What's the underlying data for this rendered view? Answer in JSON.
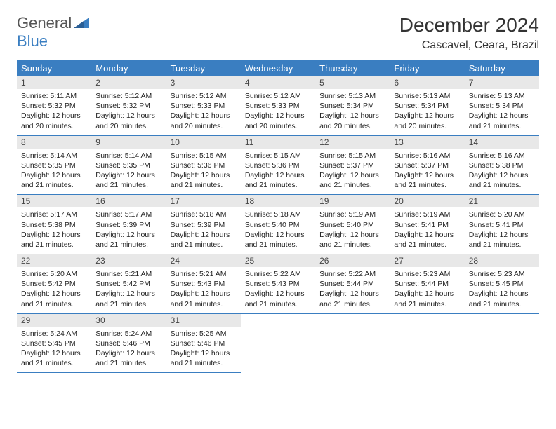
{
  "logo": {
    "text_gray": "General",
    "text_blue": "Blue"
  },
  "title": "December 2024",
  "location": "Cascavel, Ceara, Brazil",
  "colors": {
    "header_bg": "#3a7ec1",
    "header_fg": "#ffffff",
    "daynum_bg": "#e8e8e8",
    "row_border": "#3a7ec1",
    "page_bg": "#ffffff",
    "text": "#222222"
  },
  "day_headers": [
    "Sunday",
    "Monday",
    "Tuesday",
    "Wednesday",
    "Thursday",
    "Friday",
    "Saturday"
  ],
  "weeks": [
    [
      {
        "n": "1",
        "sunrise": "5:11 AM",
        "sunset": "5:32 PM",
        "daylight": "12 hours and 20 minutes."
      },
      {
        "n": "2",
        "sunrise": "5:12 AM",
        "sunset": "5:32 PM",
        "daylight": "12 hours and 20 minutes."
      },
      {
        "n": "3",
        "sunrise": "5:12 AM",
        "sunset": "5:33 PM",
        "daylight": "12 hours and 20 minutes."
      },
      {
        "n": "4",
        "sunrise": "5:12 AM",
        "sunset": "5:33 PM",
        "daylight": "12 hours and 20 minutes."
      },
      {
        "n": "5",
        "sunrise": "5:13 AM",
        "sunset": "5:34 PM",
        "daylight": "12 hours and 20 minutes."
      },
      {
        "n": "6",
        "sunrise": "5:13 AM",
        "sunset": "5:34 PM",
        "daylight": "12 hours and 20 minutes."
      },
      {
        "n": "7",
        "sunrise": "5:13 AM",
        "sunset": "5:34 PM",
        "daylight": "12 hours and 21 minutes."
      }
    ],
    [
      {
        "n": "8",
        "sunrise": "5:14 AM",
        "sunset": "5:35 PM",
        "daylight": "12 hours and 21 minutes."
      },
      {
        "n": "9",
        "sunrise": "5:14 AM",
        "sunset": "5:35 PM",
        "daylight": "12 hours and 21 minutes."
      },
      {
        "n": "10",
        "sunrise": "5:15 AM",
        "sunset": "5:36 PM",
        "daylight": "12 hours and 21 minutes."
      },
      {
        "n": "11",
        "sunrise": "5:15 AM",
        "sunset": "5:36 PM",
        "daylight": "12 hours and 21 minutes."
      },
      {
        "n": "12",
        "sunrise": "5:15 AM",
        "sunset": "5:37 PM",
        "daylight": "12 hours and 21 minutes."
      },
      {
        "n": "13",
        "sunrise": "5:16 AM",
        "sunset": "5:37 PM",
        "daylight": "12 hours and 21 minutes."
      },
      {
        "n": "14",
        "sunrise": "5:16 AM",
        "sunset": "5:38 PM",
        "daylight": "12 hours and 21 minutes."
      }
    ],
    [
      {
        "n": "15",
        "sunrise": "5:17 AM",
        "sunset": "5:38 PM",
        "daylight": "12 hours and 21 minutes."
      },
      {
        "n": "16",
        "sunrise": "5:17 AM",
        "sunset": "5:39 PM",
        "daylight": "12 hours and 21 minutes."
      },
      {
        "n": "17",
        "sunrise": "5:18 AM",
        "sunset": "5:39 PM",
        "daylight": "12 hours and 21 minutes."
      },
      {
        "n": "18",
        "sunrise": "5:18 AM",
        "sunset": "5:40 PM",
        "daylight": "12 hours and 21 minutes."
      },
      {
        "n": "19",
        "sunrise": "5:19 AM",
        "sunset": "5:40 PM",
        "daylight": "12 hours and 21 minutes."
      },
      {
        "n": "20",
        "sunrise": "5:19 AM",
        "sunset": "5:41 PM",
        "daylight": "12 hours and 21 minutes."
      },
      {
        "n": "21",
        "sunrise": "5:20 AM",
        "sunset": "5:41 PM",
        "daylight": "12 hours and 21 minutes."
      }
    ],
    [
      {
        "n": "22",
        "sunrise": "5:20 AM",
        "sunset": "5:42 PM",
        "daylight": "12 hours and 21 minutes."
      },
      {
        "n": "23",
        "sunrise": "5:21 AM",
        "sunset": "5:42 PM",
        "daylight": "12 hours and 21 minutes."
      },
      {
        "n": "24",
        "sunrise": "5:21 AM",
        "sunset": "5:43 PM",
        "daylight": "12 hours and 21 minutes."
      },
      {
        "n": "25",
        "sunrise": "5:22 AM",
        "sunset": "5:43 PM",
        "daylight": "12 hours and 21 minutes."
      },
      {
        "n": "26",
        "sunrise": "5:22 AM",
        "sunset": "5:44 PM",
        "daylight": "12 hours and 21 minutes."
      },
      {
        "n": "27",
        "sunrise": "5:23 AM",
        "sunset": "5:44 PM",
        "daylight": "12 hours and 21 minutes."
      },
      {
        "n": "28",
        "sunrise": "5:23 AM",
        "sunset": "5:45 PM",
        "daylight": "12 hours and 21 minutes."
      }
    ],
    [
      {
        "n": "29",
        "sunrise": "5:24 AM",
        "sunset": "5:45 PM",
        "daylight": "12 hours and 21 minutes."
      },
      {
        "n": "30",
        "sunrise": "5:24 AM",
        "sunset": "5:46 PM",
        "daylight": "12 hours and 21 minutes."
      },
      {
        "n": "31",
        "sunrise": "5:25 AM",
        "sunset": "5:46 PM",
        "daylight": "12 hours and 21 minutes."
      },
      null,
      null,
      null,
      null
    ]
  ],
  "labels": {
    "sunrise_prefix": "Sunrise: ",
    "sunset_prefix": "Sunset: ",
    "daylight_prefix": "Daylight: "
  }
}
